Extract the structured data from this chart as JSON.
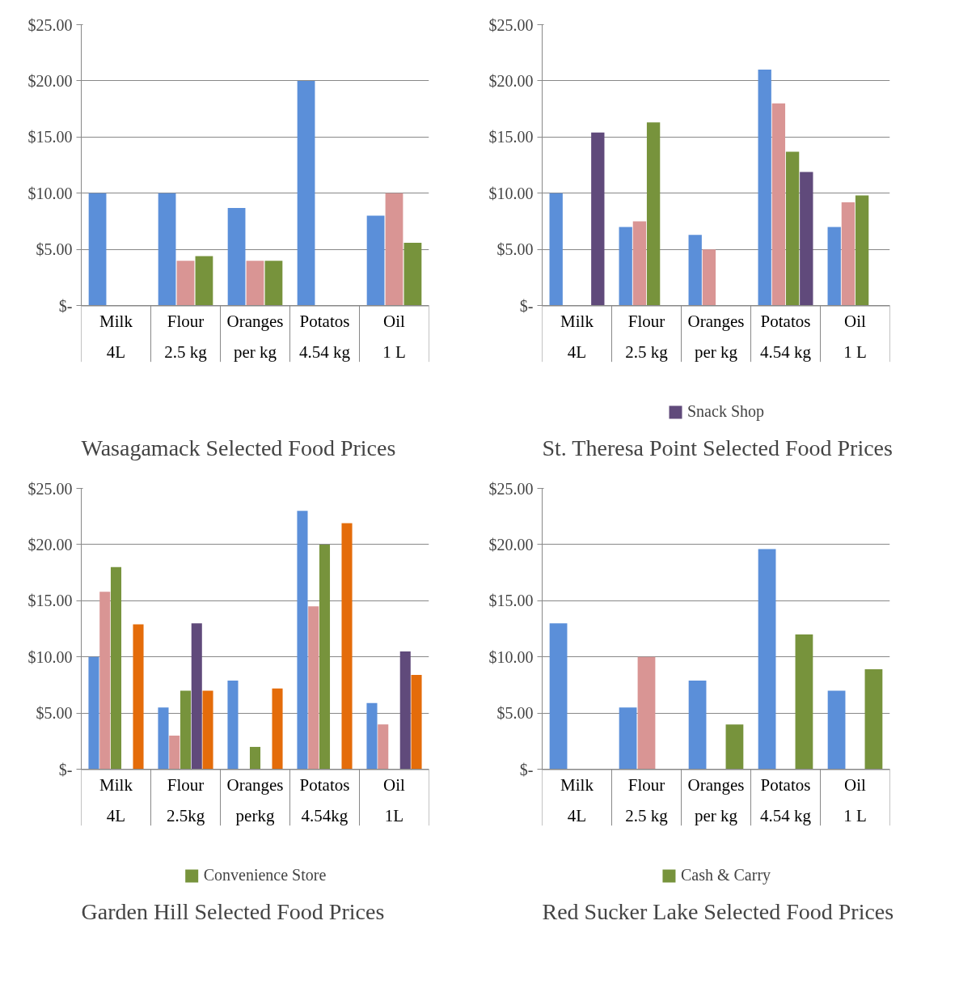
{
  "chart_data": [
    {
      "type": "bar",
      "title": "Wasagamack Selected Food Prices",
      "categories": [
        "Milk\n4L",
        "Flour\n2.5 kg",
        "Oranges\nper kg",
        "Potatos\n4.54 kg",
        "Oil\n1 L"
      ],
      "ylim": [
        0,
        25
      ],
      "yticks": [
        {
          "value": 0,
          "label": "$-"
        },
        {
          "value": 5,
          "label": "$5.00"
        },
        {
          "value": 10,
          "label": "$10.00"
        },
        {
          "value": 15,
          "label": "$15.00"
        },
        {
          "value": 20,
          "label": "$20.00"
        },
        {
          "value": 25,
          "label": "$25.00"
        }
      ],
      "grid": "y",
      "legend": false,
      "series": [
        {
          "color": "#5b8fd9",
          "values": [
            10,
            10,
            8.7,
            20,
            8
          ]
        },
        {
          "color": "#d99594",
          "values": [
            null,
            4,
            4,
            null,
            10
          ]
        },
        {
          "color": "#77933c",
          "values": [
            null,
            4.4,
            4,
            null,
            5.6
          ]
        }
      ]
    },
    {
      "type": "bar",
      "title": "St. Theresa Point Selected Food Prices",
      "categories": [
        "Milk\n4L",
        "Flour\n2.5 kg",
        "Oranges\nper kg",
        "Potatos\n4.54 kg",
        "Oil\n1 L"
      ],
      "ylim": [
        0,
        25
      ],
      "yticks": [
        {
          "value": 0,
          "label": "$-"
        },
        {
          "value": 5,
          "label": "$5.00"
        },
        {
          "value": 10,
          "label": "$10.00"
        },
        {
          "value": 15,
          "label": "$15.00"
        },
        {
          "value": 20,
          "label": "$20.00"
        },
        {
          "value": 25,
          "label": "$25.00"
        }
      ],
      "grid": "y",
      "legend": "bottom",
      "series": [
        {
          "color": "#5b8fd9",
          "values": [
            10,
            7,
            6.3,
            21,
            7
          ]
        },
        {
          "color": "#d99594",
          "values": [
            null,
            7.5,
            5,
            18,
            9.2
          ]
        },
        {
          "color": "#77933c",
          "values": [
            null,
            16.3,
            null,
            13.7,
            9.8
          ]
        },
        {
          "name": "Snack Shop",
          "color": "#604a7b",
          "values": [
            15.4,
            null,
            null,
            11.9,
            null
          ]
        }
      ]
    },
    {
      "type": "bar",
      "title": "Garden Hill Selected Food Prices",
      "categories": [
        "Milk\n4L",
        "Flour\n2.5kg",
        "Oranges\nperkg",
        "Potatos\n4.54kg",
        "Oil\n1L"
      ],
      "ylim": [
        0,
        25
      ],
      "yticks": [
        {
          "value": 0,
          "label": "$-"
        },
        {
          "value": 5,
          "label": "$5.00"
        },
        {
          "value": 10,
          "label": "$10.00"
        },
        {
          "value": 15,
          "label": "$15.00"
        },
        {
          "value": 20,
          "label": "$20.00"
        },
        {
          "value": 25,
          "label": "$25.00"
        }
      ],
      "grid": "y",
      "legend": "bottom",
      "series": [
        {
          "color": "#5b8fd9",
          "values": [
            10,
            5.5,
            7.9,
            23,
            5.9
          ]
        },
        {
          "color": "#d99594",
          "values": [
            15.8,
            3,
            null,
            14.5,
            4
          ]
        },
        {
          "name": "Convenience Store",
          "color": "#77933c",
          "values": [
            18,
            7,
            2,
            20,
            null
          ]
        },
        {
          "color": "#604a7b",
          "values": [
            null,
            13,
            null,
            null,
            10.5
          ]
        },
        {
          "color": "#e46c0a",
          "values": [
            12.9,
            7,
            7.2,
            21.9,
            8.4
          ]
        }
      ]
    },
    {
      "type": "bar",
      "title": "Red Sucker Lake Selected Food Prices",
      "categories": [
        "Milk\n4L",
        "Flour\n2.5 kg",
        "Oranges\nper kg",
        "Potatos\n4.54 kg",
        "Oil\n1 L"
      ],
      "ylim": [
        0,
        25
      ],
      "yticks": [
        {
          "value": 0,
          "label": "$-"
        },
        {
          "value": 5,
          "label": "$5.00"
        },
        {
          "value": 10,
          "label": "$10.00"
        },
        {
          "value": 15,
          "label": "$15.00"
        },
        {
          "value": 20,
          "label": "$20.00"
        },
        {
          "value": 25,
          "label": "$25.00"
        }
      ],
      "grid": "y",
      "legend": "bottom",
      "series": [
        {
          "color": "#5b8fd9",
          "values": [
            13,
            5.5,
            7.9,
            19.6,
            7
          ]
        },
        {
          "color": "#d99594",
          "values": [
            null,
            10,
            null,
            null,
            null
          ]
        },
        {
          "name": "Cash & Carry",
          "color": "#77933c",
          "values": [
            null,
            null,
            4,
            12,
            8.9
          ]
        }
      ]
    }
  ]
}
